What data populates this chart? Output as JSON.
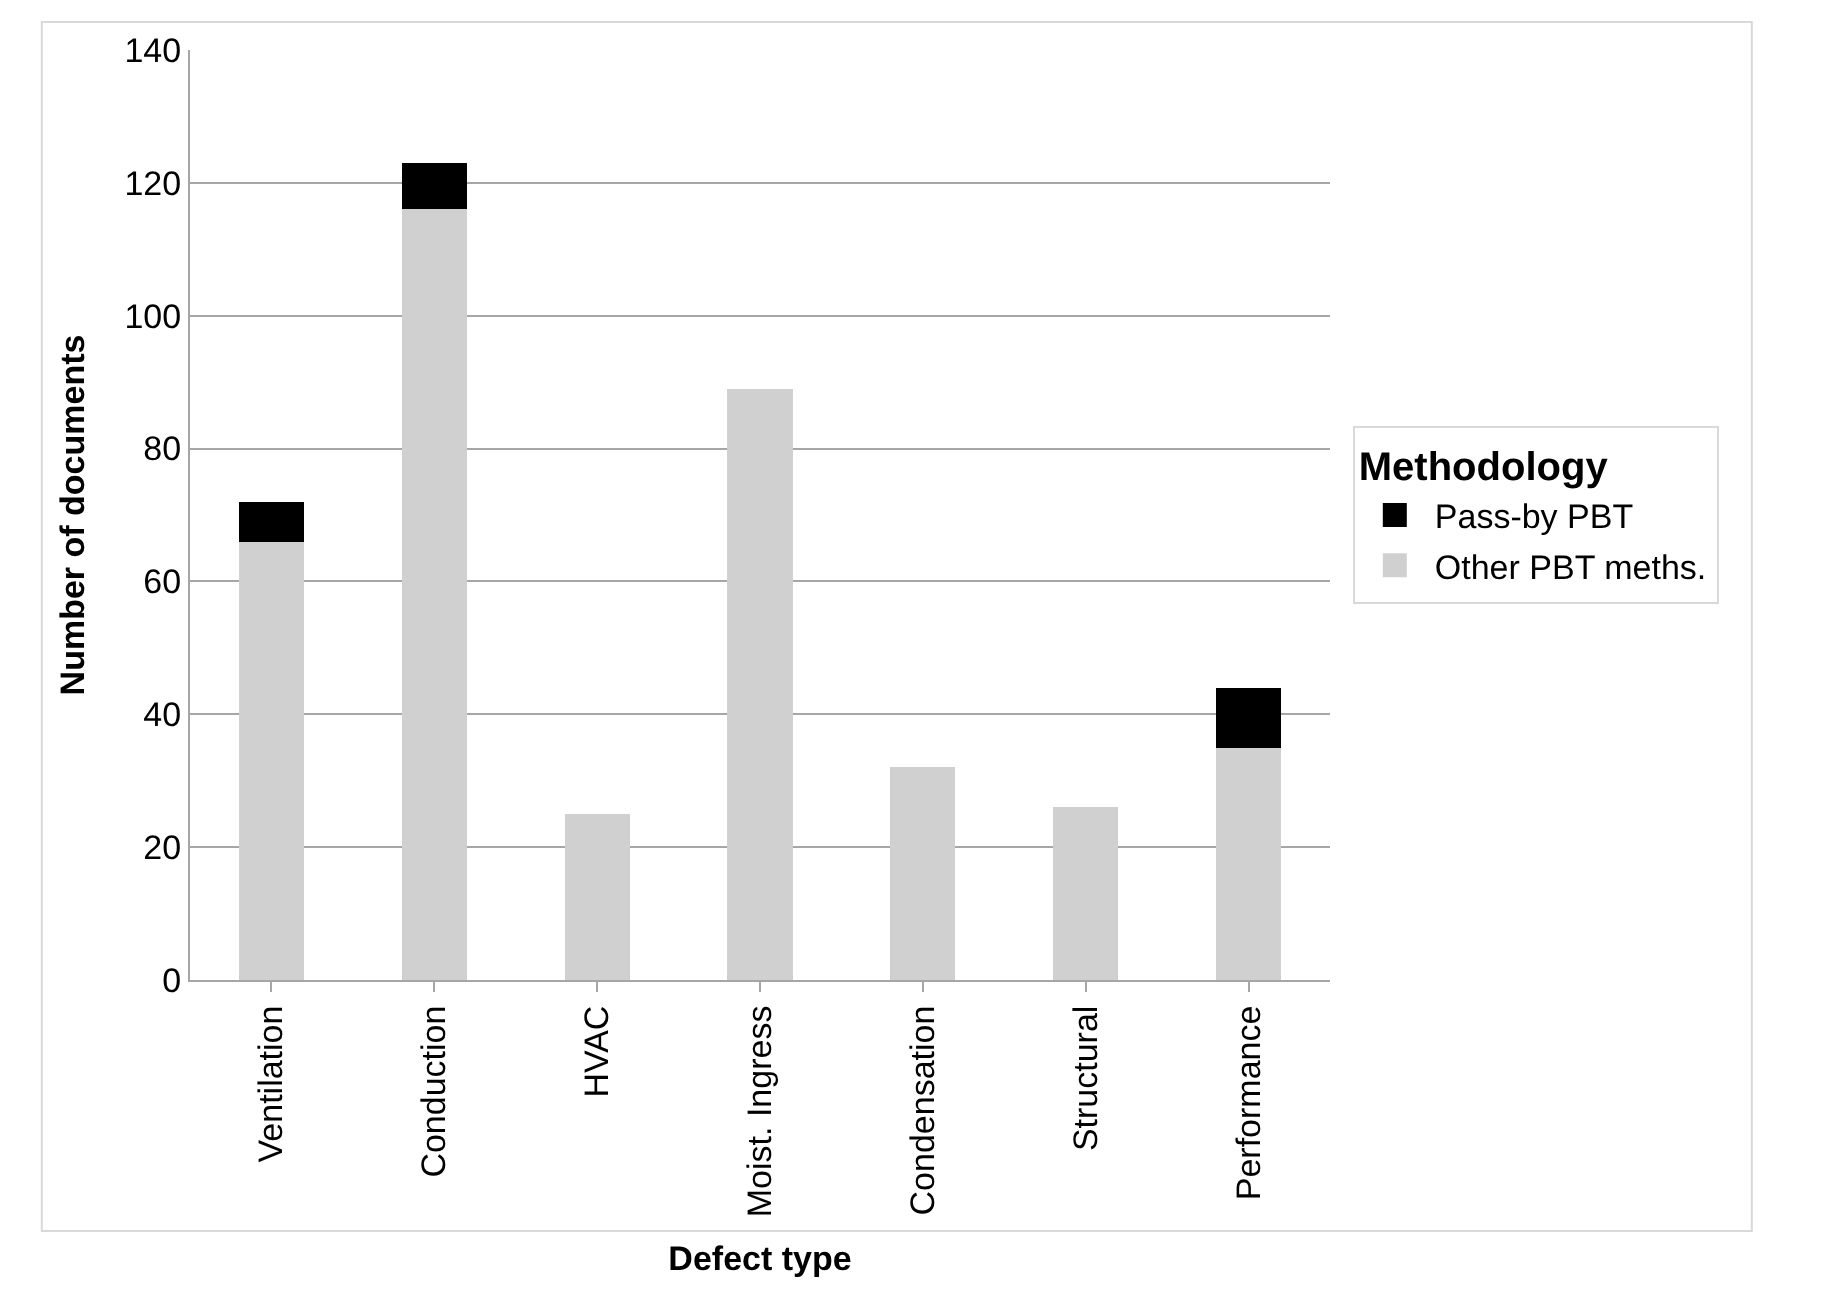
{
  "chart_data": {
    "type": "bar",
    "stacked": true,
    "xlabel": "Defect type",
    "ylabel": "Number of documents",
    "legend_title": "Methodology",
    "categories": [
      "Ventilation",
      "Conduction",
      "HVAC",
      "Moist. Ingress",
      "Condensation",
      "Structural",
      "Performance"
    ],
    "series": [
      {
        "name": "Other PBT meths.",
        "color": "#d0d0d0",
        "values": [
          66,
          116,
          25,
          89,
          32,
          26,
          35
        ]
      },
      {
        "name": "Pass-by PBT",
        "color": "#000000",
        "values": [
          6,
          7,
          0,
          0,
          0,
          0,
          9
        ]
      }
    ],
    "ylim": [
      0,
      140
    ],
    "yticks": [
      0,
      20,
      40,
      60,
      80,
      100,
      120,
      140
    ],
    "grid": "y",
    "legend": "right"
  }
}
